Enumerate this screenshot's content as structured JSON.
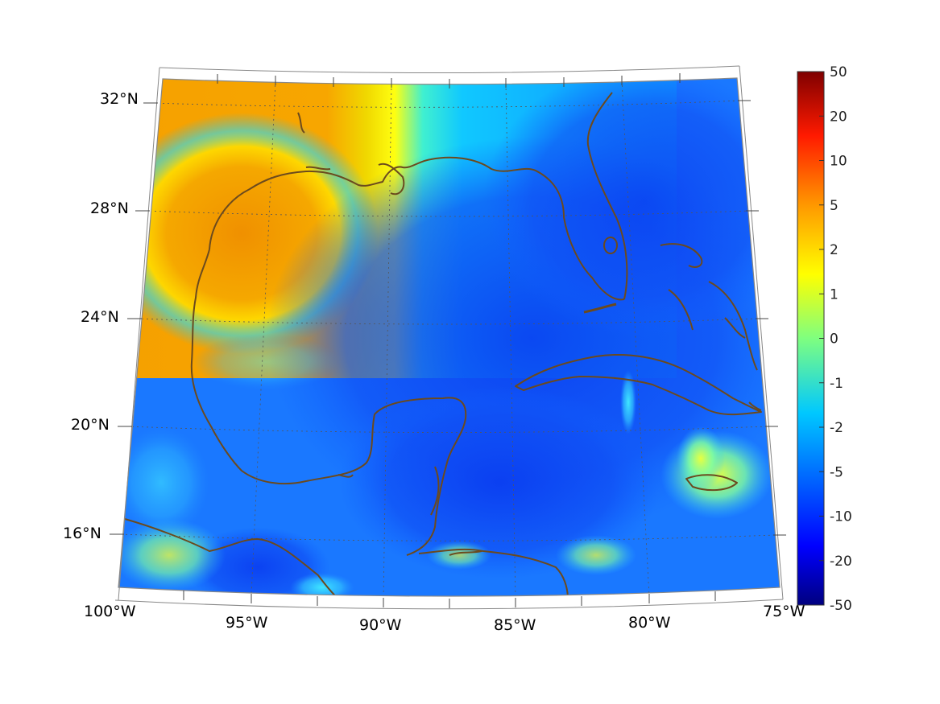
{
  "map": {
    "region": "Gulf of Mexico and Caribbean",
    "projection": "conic",
    "extent": {
      "lon": [
        -100,
        -75
      ],
      "lat": [
        14,
        32
      ]
    },
    "field_colors": {
      "coast_line": "#6b4a1e",
      "grid_line": "#555555",
      "warm_land_nw": "#f5a000",
      "cold_caribbean": "#0a3cf0"
    }
  },
  "lon_labels": [
    {
      "text": "100°W",
      "lon": -100
    },
    {
      "text": "95°W",
      "lon": -95
    },
    {
      "text": "90°W",
      "lon": -90
    },
    {
      "text": "85°W",
      "lon": -85
    },
    {
      "text": "80°W",
      "lon": -80
    },
    {
      "text": "75°W",
      "lon": -75
    }
  ],
  "lat_labels": [
    {
      "text": "32°N",
      "lat": 32
    },
    {
      "text": "28°N",
      "lat": 28
    },
    {
      "text": "24°N",
      "lat": 24
    },
    {
      "text": "20°N",
      "lat": 20
    },
    {
      "text": "16°N",
      "lat": 16
    }
  ],
  "colorbar": {
    "colormap": "jet",
    "ticks": [
      {
        "label": "50",
        "value": 50
      },
      {
        "label": "20",
        "value": 20
      },
      {
        "label": "10",
        "value": 10
      },
      {
        "label": "5",
        "value": 5
      },
      {
        "label": "2",
        "value": 2
      },
      {
        "label": "1",
        "value": 1
      },
      {
        "label": "0",
        "value": 0
      },
      {
        "label": "-1",
        "value": -1
      },
      {
        "label": "-2",
        "value": -2
      },
      {
        "label": "-5",
        "value": -5
      },
      {
        "label": "-10",
        "value": -10
      },
      {
        "label": "-20",
        "value": -20
      },
      {
        "label": "-50",
        "value": -50
      }
    ]
  }
}
